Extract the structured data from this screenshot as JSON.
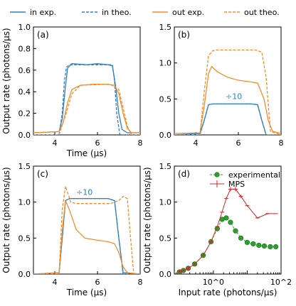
{
  "figure": {
    "legend": [
      {
        "label": "in exp.",
        "color": "#2f7fc1",
        "dash": false
      },
      {
        "label": "in theo.",
        "color": "#2f7fc1",
        "dash": true
      },
      {
        "label": "out exp.",
        "color": "#f28e2b",
        "dash": false
      },
      {
        "label": "out theo.",
        "color": "#f28e2b",
        "dash": true
      }
    ],
    "colors": {
      "in": "#2f7fc1",
      "out": "#f28e2b",
      "exp_markers": "#2ca02c",
      "mps": "#d62728"
    }
  },
  "chart_data": [
    {
      "panel_label": "(a)",
      "type": "line",
      "xlabel": "Time (µs)",
      "ylabel": "Output rate (photons/µs)",
      "xlim": [
        3,
        8
      ],
      "ylim": [
        0,
        1.0
      ],
      "xticks": [
        4,
        6,
        8
      ],
      "yticks": [
        0.0,
        0.2,
        0.4,
        0.6,
        0.8,
        1.0
      ],
      "ytick_labels": [
        "0.0",
        "0.2",
        "0.4",
        "0.6",
        "0.8",
        "1.0"
      ],
      "series": [
        {
          "name": "in exp.",
          "style": "solid",
          "color": "#2f7fc1",
          "x": [
            3.0,
            4.2,
            4.35,
            4.5,
            4.6,
            4.8,
            5.5,
            6.0,
            6.5,
            6.7,
            6.85,
            7.0,
            7.15,
            7.4,
            8.0
          ],
          "y": [
            0.02,
            0.03,
            0.15,
            0.45,
            0.62,
            0.66,
            0.65,
            0.66,
            0.65,
            0.64,
            0.45,
            0.2,
            0.05,
            0.02,
            0.02
          ]
        },
        {
          "name": "in theo.",
          "style": "dashed",
          "color": "#2f7fc1",
          "x": [
            3.0,
            4.2,
            4.35,
            4.45,
            4.55,
            4.7,
            6.7,
            6.8,
            6.9,
            7.05,
            8.0
          ],
          "y": [
            0.0,
            0.0,
            0.2,
            0.5,
            0.63,
            0.65,
            0.65,
            0.5,
            0.2,
            0.0,
            0.0
          ]
        },
        {
          "name": "out exp.",
          "style": "solid",
          "color": "#f28e2b",
          "x": [
            3.0,
            4.2,
            4.4,
            4.6,
            4.8,
            5.2,
            5.8,
            6.4,
            6.8,
            7.0,
            7.2,
            7.4,
            7.6,
            8.0
          ],
          "y": [
            0.02,
            0.03,
            0.12,
            0.3,
            0.42,
            0.46,
            0.47,
            0.47,
            0.46,
            0.38,
            0.2,
            0.06,
            0.02,
            0.02
          ]
        },
        {
          "name": "out theo.",
          "style": "dashed",
          "color": "#f28e2b",
          "x": [
            3.0,
            4.2,
            4.5,
            4.8,
            5.2,
            6.6,
            7.0,
            7.2,
            7.4,
            7.6,
            8.0
          ],
          "y": [
            0.0,
            0.0,
            0.18,
            0.38,
            0.46,
            0.47,
            0.42,
            0.25,
            0.08,
            0.0,
            0.0
          ]
        }
      ]
    },
    {
      "panel_label": "(b)",
      "type": "line",
      "xlabel": "",
      "ylabel": "",
      "xlim": [
        3,
        8
      ],
      "ylim": [
        0,
        1.5
      ],
      "xticks": [
        4,
        6,
        8
      ],
      "yticks": [
        0.0,
        0.5,
        1.0,
        1.5
      ],
      "ytick_labels": [
        "0.0",
        "0.5",
        "1.0",
        "1.5"
      ],
      "annotation": {
        "text": "÷10",
        "color": "#2f7fc1",
        "x": 5.4,
        "y": 0.5
      },
      "series": [
        {
          "name": "in exp.",
          "style": "solid",
          "color": "#2f7fc1",
          "x": [
            3.0,
            4.2,
            4.4,
            4.6,
            4.8,
            6.6,
            6.9,
            7.1,
            7.3,
            8.0
          ],
          "y": [
            0.0,
            0.02,
            0.2,
            0.42,
            0.43,
            0.43,
            0.42,
            0.2,
            0.0,
            0.0
          ]
        },
        {
          "name": "in theo.",
          "style": "dashed",
          "color": "#2f7fc1",
          "x": [
            3.0,
            4.2,
            4.4,
            4.6,
            4.8,
            6.6,
            6.9,
            7.1,
            7.3,
            8.0
          ],
          "y": [
            0.0,
            0.0,
            0.2,
            0.42,
            0.43,
            0.43,
            0.42,
            0.2,
            0.0,
            0.0
          ]
        },
        {
          "name": "out exp.",
          "style": "solid",
          "color": "#f28e2b",
          "x": [
            3.0,
            4.2,
            4.4,
            4.6,
            4.75,
            5.0,
            5.5,
            6.0,
            6.5,
            6.9,
            7.2,
            7.4,
            7.6,
            8.0
          ],
          "y": [
            0.02,
            0.03,
            0.4,
            0.85,
            0.95,
            0.88,
            0.8,
            0.76,
            0.74,
            0.72,
            0.5,
            0.2,
            0.05,
            0.02
          ]
        },
        {
          "name": "out theo.",
          "style": "dashed",
          "color": "#f28e2b",
          "x": [
            3.0,
            4.2,
            4.4,
            4.6,
            4.8,
            5.0,
            6.8,
            7.1,
            7.3,
            7.5,
            8.0
          ],
          "y": [
            0.0,
            0.0,
            0.6,
            1.1,
            1.17,
            1.18,
            1.18,
            1.15,
            0.8,
            0.05,
            0.0
          ]
        }
      ]
    },
    {
      "panel_label": "(c)",
      "type": "line",
      "xlabel": "Time (µs)",
      "ylabel": "Output rate (photons/µs)",
      "xlim": [
        3,
        8
      ],
      "ylim": [
        0,
        1.5
      ],
      "xticks": [
        4,
        6,
        8
      ],
      "yticks": [
        0.0,
        0.5,
        1.0,
        1.5
      ],
      "ytick_labels": [
        "0.0",
        "0.5",
        "1.0",
        "1.5"
      ],
      "annotation": {
        "text": "÷10",
        "color": "#2f7fc1",
        "x": 5.0,
        "y": 1.1
      },
      "series": [
        {
          "name": "in exp.",
          "style": "solid",
          "color": "#2f7fc1",
          "x": [
            3.0,
            4.2,
            4.35,
            4.5,
            4.7,
            6.5,
            6.8,
            7.0,
            7.2,
            8.0
          ],
          "y": [
            0.0,
            0.02,
            0.5,
            1.02,
            1.05,
            1.05,
            1.02,
            0.5,
            0.02,
            0.0
          ]
        },
        {
          "name": "in theo.",
          "style": "dashed",
          "color": "#2f7fc1",
          "x": [
            3.0,
            4.2,
            4.35,
            4.5,
            4.7,
            6.5,
            6.8,
            7.0,
            7.2,
            8.0
          ],
          "y": [
            0.0,
            0.0,
            0.5,
            1.02,
            1.05,
            1.05,
            1.02,
            0.5,
            0.0,
            0.0
          ]
        },
        {
          "name": "out exp.",
          "style": "solid",
          "color": "#f28e2b",
          "x": [
            3.0,
            4.2,
            4.35,
            4.5,
            4.7,
            5.0,
            5.4,
            6.0,
            6.5,
            6.8,
            7.0,
            7.2,
            7.4,
            8.0
          ],
          "y": [
            0.0,
            0.02,
            0.6,
            1.02,
            0.88,
            0.62,
            0.5,
            0.47,
            0.45,
            0.42,
            0.3,
            0.1,
            0.02,
            0.0
          ]
        },
        {
          "name": "out theo.",
          "style": "dashed",
          "color": "#f28e2b",
          "x": [
            3.0,
            4.2,
            4.35,
            4.5,
            4.75,
            5.0,
            6.6,
            7.0,
            7.2,
            7.4,
            7.55,
            7.7,
            8.0
          ],
          "y": [
            0.0,
            0.0,
            0.9,
            1.22,
            1.0,
            0.98,
            0.98,
            1.02,
            1.08,
            1.05,
            0.5,
            0.0,
            0.0
          ]
        }
      ]
    },
    {
      "panel_label": "(d)",
      "type": "line",
      "xlabel": "Input rate (photons/µs)",
      "ylabel": "Output rate (photons/µs)",
      "xscale": "log",
      "xlim": [
        0.07,
        100
      ],
      "ylim": [
        0,
        1.5
      ],
      "xtick_labels": [
        "10^0",
        "10^2"
      ],
      "xticks": [
        1,
        100
      ],
      "yticks": [
        0.0,
        0.5,
        1.0,
        1.5
      ],
      "ytick_labels": [
        "0.0",
        "0.5",
        "1.0",
        "1.5"
      ],
      "legend": [
        {
          "label": "experimental",
          "color": "#2ca02c"
        },
        {
          "label": "MPS",
          "color": "#d62728"
        }
      ],
      "series": [
        {
          "name": "experimental",
          "style": "dashed-markers",
          "color": "#2ca02c",
          "x": [
            0.1,
            0.13,
            0.18,
            0.28,
            0.5,
            0.85,
            1.3,
            1.8,
            2.4,
            3.2,
            4.5,
            6.5,
            10,
            15,
            22,
            32,
            48,
            70
          ],
          "y": [
            0.03,
            0.05,
            0.08,
            0.14,
            0.26,
            0.45,
            0.63,
            0.76,
            0.78,
            0.72,
            0.6,
            0.5,
            0.44,
            0.42,
            0.4,
            0.39,
            0.38,
            0.38
          ]
        },
        {
          "name": "MPS",
          "style": "errorbar",
          "color": "#d62728",
          "x": [
            0.1,
            0.13,
            0.18,
            0.28,
            0.5,
            0.85,
            1.3,
            1.8,
            2.4,
            3.2,
            4.5,
            6.5,
            10,
            20,
            40,
            70
          ],
          "y": [
            0.03,
            0.05,
            0.08,
            0.14,
            0.26,
            0.45,
            0.66,
            0.86,
            1.05,
            1.18,
            1.18,
            1.08,
            0.95,
            0.78,
            0.84,
            0.84
          ],
          "yerr": [
            0.0,
            0.0,
            0.0,
            0.0,
            0.01,
            0.01,
            0.02,
            0.03,
            0.05,
            0.06,
            0.06,
            0.05,
            0.04,
            0.04,
            0.04,
            0.03
          ]
        }
      ]
    }
  ]
}
